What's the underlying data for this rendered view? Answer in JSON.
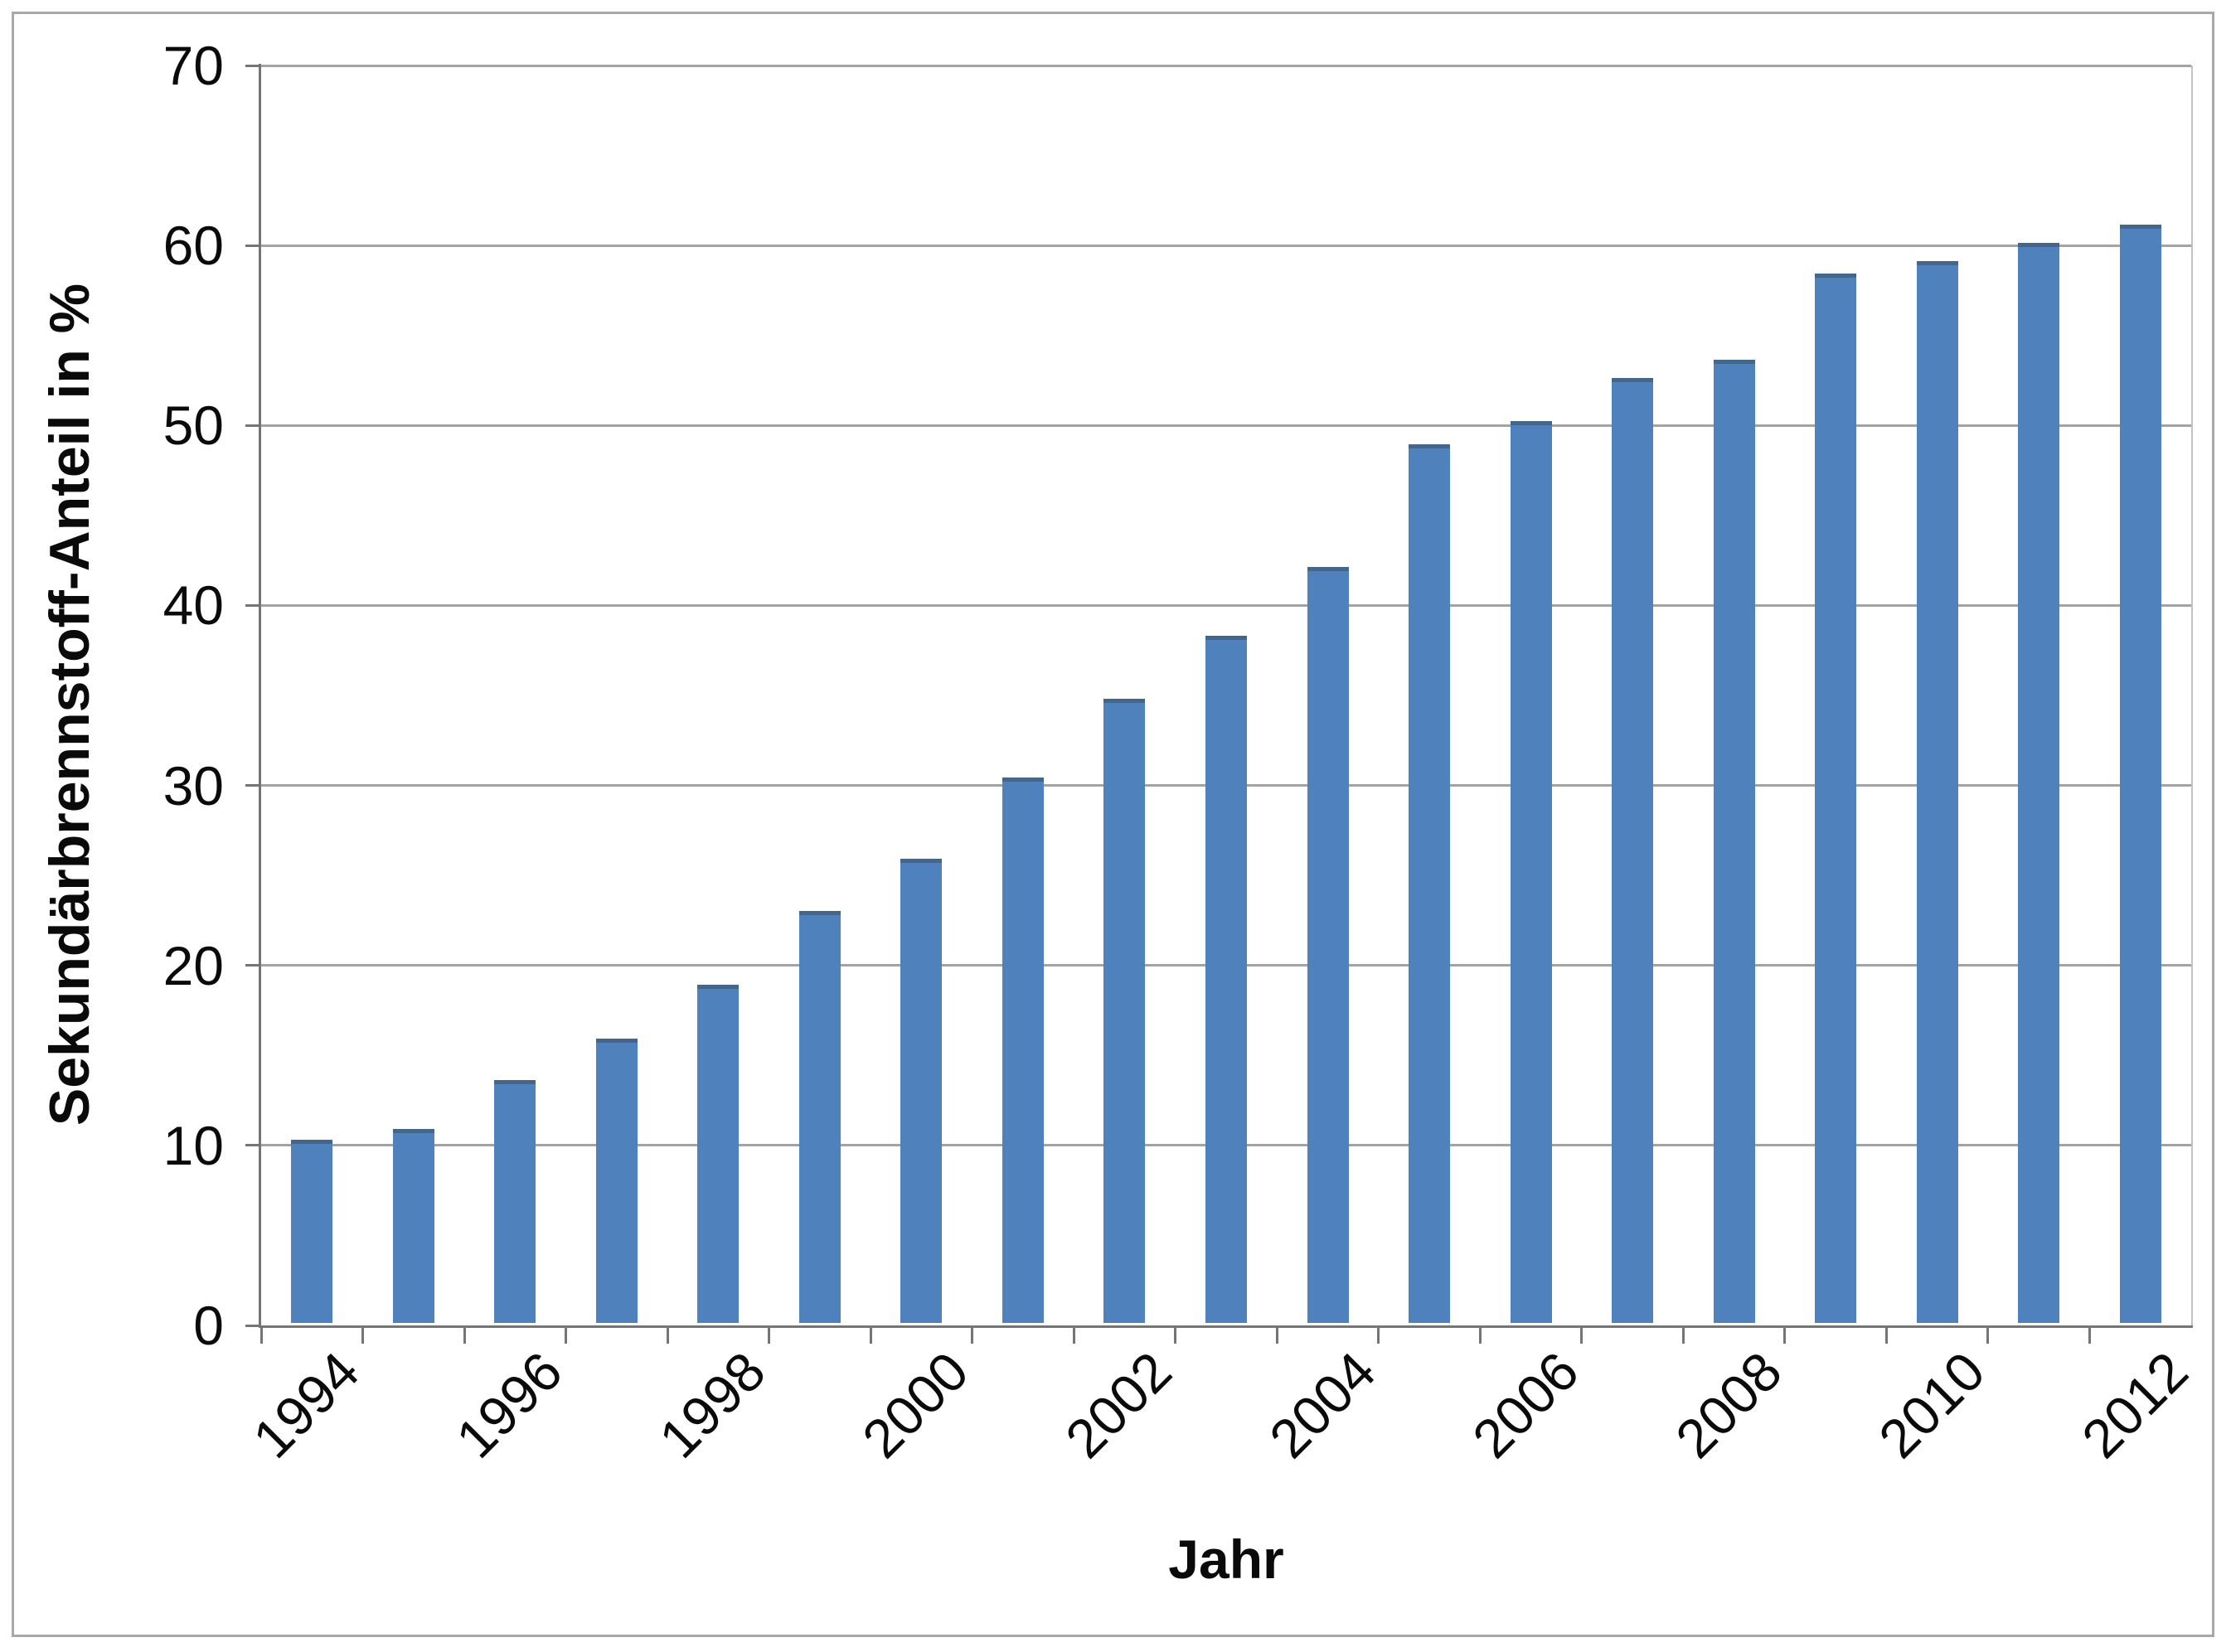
{
  "chart_data": {
    "type": "bar",
    "title": "",
    "xlabel": "Jahr",
    "ylabel": "Sekundärbrennstoff-Anteil in %",
    "categories": [
      "1994",
      "1995",
      "1996",
      "1997",
      "1998",
      "1999",
      "2000",
      "2001",
      "2002",
      "2003",
      "2004",
      "2005",
      "2006",
      "2007",
      "2008",
      "2009",
      "2010",
      "2011",
      "2012"
    ],
    "values": [
      10.2,
      10.8,
      13.5,
      15.8,
      18.8,
      22.9,
      25.8,
      30.3,
      34.7,
      38.2,
      42.0,
      48.8,
      50.1,
      52.5,
      53.5,
      58.3,
      59.0,
      60.0,
      61.0
    ],
    "ylim": [
      0,
      70
    ],
    "yticks": [
      "0",
      "10",
      "20",
      "30",
      "40",
      "50",
      "60",
      "70"
    ],
    "xtick_labels": [
      "1994",
      "1996",
      "1998",
      "2000",
      "2002",
      "2004",
      "2006",
      "2008",
      "2010",
      "2012"
    ],
    "grid": "horizontal",
    "legend": "none",
    "bar_color": "#4f81bd",
    "bar_edge_color": "#41678f",
    "gridline_color": "#a3a3a3",
    "axis_color": "#757575"
  }
}
